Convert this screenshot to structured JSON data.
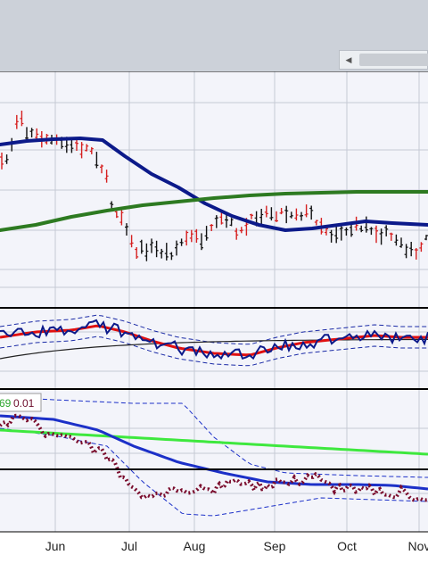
{
  "scrollbar": {
    "left_arrow_icon": "caret-left-icon"
  },
  "chart_data": {
    "type": "line",
    "x_ticks": [
      "Jun",
      "Jul",
      "Aug",
      "Sep",
      "Oct",
      "Nov"
    ],
    "grid": true,
    "panes": [
      {
        "name": "price",
        "chart_style": "ohlc-bars",
        "bar_colors": {
          "up": "#111111",
          "down": "#d62020"
        },
        "overlays": [
          {
            "color": "#0c1a8a",
            "points": [
              [
                0,
                162
              ],
              [
                30,
                158
              ],
              [
                60,
                156
              ],
              [
                90,
                155
              ],
              [
                115,
                157
              ],
              [
                140,
                175
              ],
              [
                170,
                195
              ],
              [
                200,
                210
              ],
              [
                230,
                228
              ],
              [
                260,
                242
              ],
              [
                290,
                252
              ],
              [
                320,
                258
              ],
              [
                350,
                256
              ],
              [
                380,
                252
              ],
              [
                410,
                248
              ],
              [
                440,
                250
              ],
              [
                480,
                252
              ]
            ]
          },
          {
            "color": "#2d7a21",
            "points": [
              [
                0,
                258
              ],
              [
                40,
                252
              ],
              [
                80,
                243
              ],
              [
                120,
                236
              ],
              [
                160,
                230
              ],
              [
                200,
                226
              ],
              [
                240,
                222
              ],
              [
                280,
                219
              ],
              [
                320,
                217
              ],
              [
                360,
                216
              ],
              [
                400,
                215
              ],
              [
                480,
                215
              ]
            ]
          }
        ]
      },
      {
        "name": "middle",
        "series": [
          {
            "color": "#0c1a8a",
            "style": "solid"
          },
          {
            "color": "#e01010",
            "style": "solid"
          },
          {
            "color": "#222222",
            "style": "solid"
          },
          {
            "color": "#1a2aa6",
            "style": "dashed"
          },
          {
            "color": "#1a2aa6",
            "style": "dashed"
          }
        ]
      },
      {
        "name": "lower",
        "badge": {
          "left_value": "69",
          "right_value": "0.01",
          "left_color": "#2aa52a",
          "right_color": "#6b0a2a"
        },
        "series": [
          {
            "color": "#1c30c8",
            "style": "solid"
          },
          {
            "color": "#3ee83e",
            "style": "solid"
          },
          {
            "color": "#7a0c2c",
            "style": "dotted"
          },
          {
            "color": "#1c30c8",
            "style": "dashed"
          },
          {
            "color": "#1c30c8",
            "style": "dashed"
          }
        ]
      }
    ]
  }
}
